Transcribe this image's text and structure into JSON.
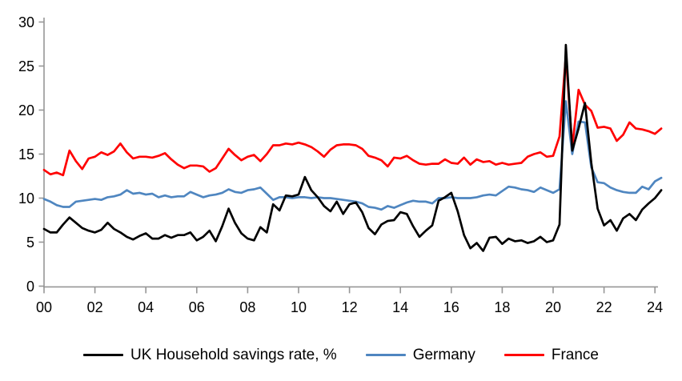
{
  "chart_data": {
    "type": "line",
    "title": "",
    "xlabel": "",
    "ylabel": "",
    "grid": false,
    "legend_position": "bottom",
    "x_axis": {
      "start_year": 2000,
      "step_years": 0.25,
      "tick_step_years": 2,
      "tick_labels": [
        "00",
        "02",
        "04",
        "06",
        "08",
        "10",
        "12",
        "14",
        "16",
        "18",
        "20",
        "22",
        "24"
      ]
    },
    "y_axis": {
      "min": 0,
      "max": 30,
      "ticks": [
        0,
        5,
        10,
        15,
        20,
        25,
        30
      ]
    },
    "axis_color": "#969696",
    "series": [
      {
        "name": "UK Household savings rate, %",
        "color": "#000000",
        "values": [
          6.5,
          6.1,
          6.1,
          7.0,
          7.8,
          7.2,
          6.6,
          6.3,
          6.1,
          6.4,
          7.2,
          6.5,
          6.1,
          5.6,
          5.3,
          5.7,
          6.0,
          5.4,
          5.4,
          5.8,
          5.5,
          5.8,
          5.8,
          6.1,
          5.2,
          5.6,
          6.3,
          5.1,
          6.8,
          8.8,
          7.2,
          6.0,
          5.4,
          5.2,
          6.7,
          6.1,
          9.3,
          8.6,
          10.3,
          10.2,
          10.4,
          12.4,
          10.9,
          10.1,
          9.1,
          8.5,
          9.6,
          8.2,
          9.3,
          9.5,
          8.4,
          6.6,
          5.9,
          7.0,
          7.4,
          7.5,
          8.4,
          8.2,
          6.8,
          5.6,
          6.3,
          6.9,
          9.7,
          10.1,
          10.6,
          8.5,
          5.8,
          4.3,
          4.9,
          4.0,
          5.5,
          5.6,
          4.8,
          5.4,
          5.1,
          5.2,
          4.9,
          5.1,
          5.6,
          5.0,
          5.2,
          7.0,
          27.4,
          15.4,
          17.9,
          20.8,
          14.0,
          8.8,
          6.9,
          7.5,
          6.3,
          7.7,
          8.2,
          7.5,
          8.7,
          9.4,
          10.0,
          10.9
        ]
      },
      {
        "name": "Germany",
        "color": "#4F86C0",
        "values": [
          9.9,
          9.6,
          9.2,
          9.0,
          9.0,
          9.6,
          9.7,
          9.8,
          9.9,
          9.8,
          10.1,
          10.2,
          10.4,
          10.9,
          10.5,
          10.6,
          10.4,
          10.5,
          10.1,
          10.3,
          10.1,
          10.2,
          10.2,
          10.7,
          10.4,
          10.1,
          10.3,
          10.4,
          10.6,
          11.0,
          10.7,
          10.6,
          10.9,
          11.0,
          11.2,
          10.5,
          9.8,
          10.1,
          10.1,
          10.0,
          10.1,
          10.1,
          10.0,
          10.1,
          10.0,
          10.0,
          9.9,
          9.8,
          9.7,
          9.6,
          9.4,
          9.0,
          8.9,
          8.7,
          9.1,
          8.9,
          9.2,
          9.5,
          9.7,
          9.6,
          9.6,
          9.4,
          10.0,
          10.0,
          10.1,
          10.0,
          10.0,
          10.0,
          10.1,
          10.3,
          10.4,
          10.3,
          10.8,
          11.3,
          11.2,
          11.0,
          10.9,
          10.7,
          11.2,
          10.9,
          10.6,
          11.0,
          21.0,
          15.0,
          18.7,
          18.6,
          13.5,
          11.8,
          11.7,
          11.2,
          10.9,
          10.7,
          10.6,
          10.6,
          11.3,
          11.0,
          11.9,
          12.3
        ]
      },
      {
        "name": "France",
        "color": "#FF0000",
        "values": [
          13.2,
          12.7,
          12.9,
          12.6,
          15.4,
          14.2,
          13.3,
          14.5,
          14.7,
          15.2,
          14.9,
          15.3,
          16.2,
          15.2,
          14.5,
          14.7,
          14.7,
          14.6,
          14.8,
          15.1,
          14.4,
          13.8,
          13.4,
          13.7,
          13.7,
          13.6,
          13.0,
          13.4,
          14.5,
          15.6,
          14.9,
          14.3,
          14.7,
          14.9,
          14.2,
          15.0,
          16.0,
          16.0,
          16.2,
          16.1,
          16.3,
          16.1,
          15.8,
          15.3,
          14.7,
          15.5,
          16.0,
          16.1,
          16.1,
          16.0,
          15.6,
          14.8,
          14.6,
          14.3,
          13.6,
          14.6,
          14.5,
          14.8,
          14.3,
          13.9,
          13.8,
          13.9,
          13.9,
          14.4,
          14.0,
          13.9,
          14.6,
          13.8,
          14.4,
          14.1,
          14.2,
          13.8,
          14.0,
          13.8,
          13.9,
          14.0,
          14.7,
          15.0,
          15.2,
          14.7,
          14.8,
          17.0,
          26.2,
          15.8,
          22.3,
          20.6,
          19.9,
          18.0,
          18.1,
          17.9,
          16.5,
          17.2,
          18.6,
          17.9,
          17.8,
          17.6,
          17.3,
          17.9
        ]
      }
    ]
  }
}
